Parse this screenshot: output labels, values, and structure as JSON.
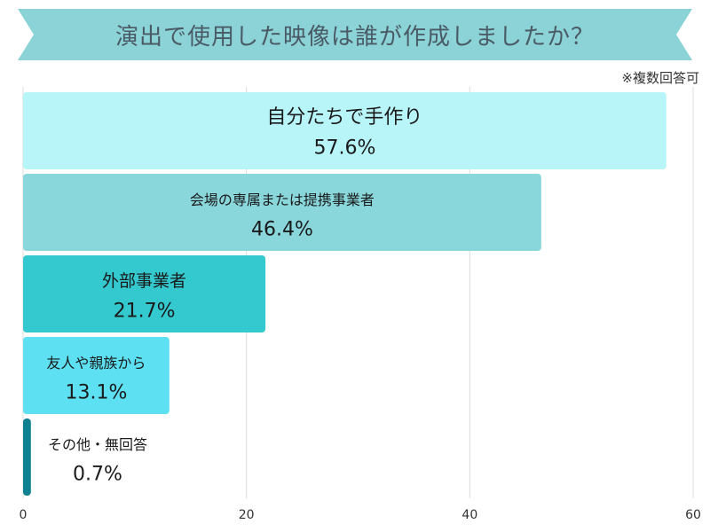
{
  "title": "演出で使用した映像は誰が作成しましたか？",
  "note": "※複数回答可",
  "colors": {
    "banner": "#8bd3d7",
    "grid": "#dcdcdc"
  },
  "chart_data": {
    "type": "bar",
    "orientation": "horizontal",
    "categories": [
      "自分たちで手作り",
      "会場の専属または提携事業者",
      "外部事業者",
      "友人や親族から",
      "その他・無回答"
    ],
    "values": [
      57.6,
      46.4,
      21.7,
      13.1,
      0.7
    ],
    "value_labels": [
      "57.6%",
      "46.4%",
      "21.7%",
      "13.1%",
      "0.7%"
    ],
    "bar_colors": [
      "#b8f5f8",
      "#89d6db",
      "#33c9cf",
      "#5ce0f2",
      "#0f8191"
    ],
    "xlim": [
      0,
      60
    ],
    "xticks": [
      0,
      20,
      40,
      60
    ],
    "xtick_labels": [
      "0",
      "20",
      "40",
      "60"
    ],
    "grid": true
  }
}
